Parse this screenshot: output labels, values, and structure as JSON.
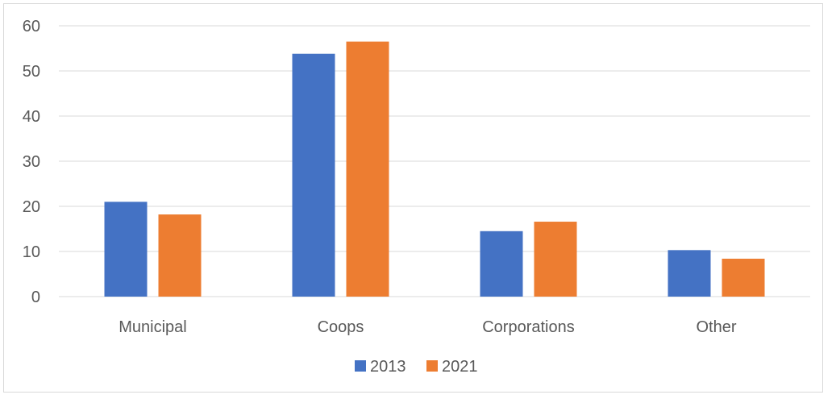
{
  "chart_data": {
    "type": "bar",
    "categories": [
      "Municipal",
      "Coops",
      "Corporations",
      "Other"
    ],
    "series": [
      {
        "name": "2013",
        "values": [
          21,
          53.8,
          14.5,
          10.3
        ],
        "color": "#4472c4"
      },
      {
        "name": "2021",
        "values": [
          18.2,
          56.5,
          16.6,
          8.4
        ],
        "color": "#ed7d31"
      }
    ],
    "ylim": [
      0,
      60
    ],
    "yticks": [
      0,
      10,
      20,
      30,
      40,
      50,
      60
    ],
    "grid": true,
    "legend_position": "bottom",
    "title": "",
    "xlabel": "",
    "ylabel": ""
  }
}
